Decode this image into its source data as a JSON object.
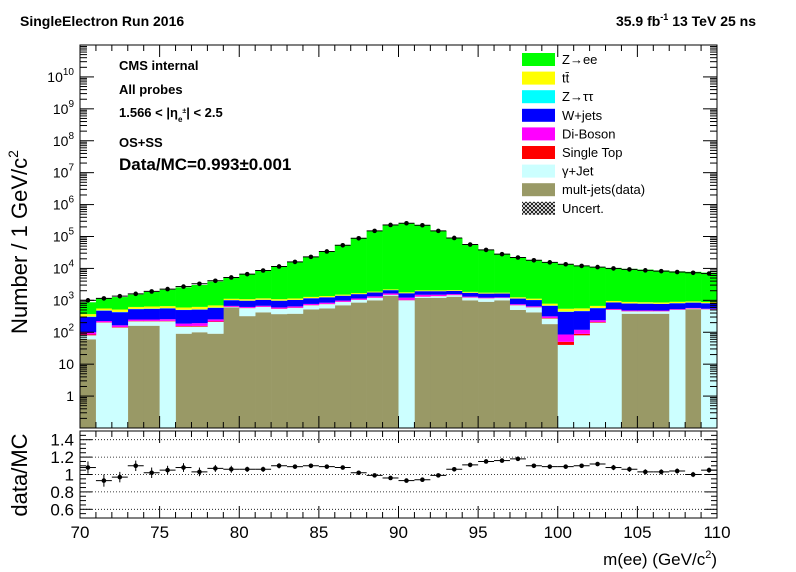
{
  "header": {
    "left": "SingleElectron Run 2016",
    "right_lumi": "35.9 fb",
    "right_lumi_sup": "-1",
    "right_rest": " 13 TeV 25 ns"
  },
  "annotations": {
    "cms": "CMS internal",
    "probes": "All probes",
    "eta_left": "1.566 < |η",
    "eta_sub": "e",
    "eta_sup": "±",
    "eta_right": "| < 2.5",
    "charge": "OS+SS",
    "ratio": "Data/MC=0.993±0.001"
  },
  "legend": [
    {
      "label": "Z→ee",
      "color": "#00ff00",
      "hatch": false
    },
    {
      "label": "tt̄",
      "color": "#ffff00",
      "hatch": false
    },
    {
      "label": "Z→ττ",
      "color": "#00ffff",
      "hatch": false
    },
    {
      "label": "W+jets",
      "color": "#0000ff",
      "hatch": false
    },
    {
      "label": "Di-Boson",
      "color": "#ff00ff",
      "hatch": false
    },
    {
      "label": "Single Top",
      "color": "#ff0000",
      "hatch": false
    },
    {
      "label": "γ+Jet",
      "color": "#ccffff",
      "hatch": false
    },
    {
      "label": "mult-jets(data)",
      "color": "#999966",
      "hatch": false
    },
    {
      "label": "Uncert.",
      "color": "#000000",
      "hatch": true
    }
  ],
  "chart_data": [
    {
      "type": "bar",
      "panel": "main",
      "stacked": true,
      "log_y": true,
      "ylabel": "Number / 1 GeV/c",
      "ylabel_sup": "2",
      "xlim": [
        70,
        110
      ],
      "ylim": [
        0.1,
        100000000000
      ],
      "y_ticks": [
        {
          "v": 1,
          "label": "1",
          "sup": ""
        },
        {
          "v": 10,
          "label": "10",
          "sup": ""
        },
        {
          "v": 100,
          "label": "10",
          "sup": "2"
        },
        {
          "v": 1000,
          "label": "10",
          "sup": "3"
        },
        {
          "v": 10000,
          "label": "10",
          "sup": "4"
        },
        {
          "v": 100000,
          "label": "10",
          "sup": "5"
        },
        {
          "v": 1000000,
          "label": "10",
          "sup": "6"
        },
        {
          "v": 10000000,
          "label": "10",
          "sup": "7"
        },
        {
          "v": 100000000,
          "label": "10",
          "sup": "8"
        },
        {
          "v": 1000000000,
          "label": "10",
          "sup": "9"
        },
        {
          "v": 10000000000,
          "label": "10",
          "sup": "10"
        }
      ],
      "x": [
        70.5,
        71.5,
        72.5,
        73.5,
        74.5,
        75.5,
        76.5,
        77.5,
        78.5,
        79.5,
        80.5,
        81.5,
        82.5,
        83.5,
        84.5,
        85.5,
        86.5,
        87.5,
        88.5,
        89.5,
        90.5,
        91.5,
        92.5,
        93.5,
        94.5,
        95.5,
        96.5,
        97.5,
        98.5,
        99.5,
        100.5,
        101.5,
        102.5,
        103.5,
        104.5,
        105.5,
        106.5,
        107.5,
        108.5,
        109.5
      ],
      "data": [
        1000,
        1150,
        1350,
        1600,
        1900,
        2250,
        2700,
        3300,
        4100,
        5200,
        6600,
        8600,
        11500,
        16000,
        23000,
        34000,
        53000,
        88000,
        150000,
        230000,
        260000,
        225000,
        150000,
        90000,
        56000,
        38000,
        28000,
        22000,
        18000,
        15500,
        13500,
        12000,
        11000,
        10000,
        9300,
        8700,
        8200,
        7700,
        7300,
        6900
      ],
      "series": [
        {
          "name": "mult-jets(data)",
          "color": "#999966",
          "values": [
            60,
            0.1,
            0.1,
            160,
            160,
            0.1,
            90,
            100,
            90,
            600,
            320,
            420,
            370,
            380,
            520,
            560,
            700,
            850,
            1000,
            1400,
            0.1,
            1200,
            1200,
            1300,
            1000,
            900,
            1000,
            500,
            420,
            180,
            0.1,
            0.1,
            0.1,
            0.1,
            380,
            380,
            380,
            0.1,
            530,
            0.1
          ]
        },
        {
          "name": "γ+Jet",
          "color": "#ccffff",
          "values": [
            20,
            200,
            140,
            60,
            60,
            220,
            60,
            50,
            120,
            20,
            250,
            200,
            170,
            200,
            180,
            200,
            190,
            180,
            200,
            80,
            1000,
            100,
            150,
            150,
            220,
            250,
            180,
            200,
            180,
            90,
            40,
            80,
            200,
            500,
            70,
            70,
            70,
            500,
            20,
            520
          ]
        },
        {
          "name": "Single Top",
          "color": "#ff0000",
          "values": [
            5,
            5,
            5,
            6,
            6,
            7,
            7,
            8,
            8,
            9,
            10,
            10,
            10,
            11,
            11,
            12,
            12,
            13,
            13,
            14,
            14,
            14,
            13,
            13,
            12,
            12,
            11,
            11,
            10,
            10,
            10,
            9,
            9,
            8,
            8,
            8,
            7,
            7,
            7,
            6
          ]
        },
        {
          "name": "Di-Boson",
          "color": "#ff00ff",
          "values": [
            15,
            20,
            20,
            25,
            25,
            30,
            30,
            35,
            35,
            40,
            40,
            45,
            50,
            55,
            60,
            70,
            80,
            100,
            120,
            150,
            200,
            180,
            140,
            100,
            80,
            60,
            50,
            45,
            40,
            35,
            35,
            30,
            30,
            28,
            25,
            25,
            22,
            22,
            20,
            20
          ]
        },
        {
          "name": "W+jets",
          "color": "#0000ff",
          "values": [
            200,
            250,
            260,
            280,
            290,
            300,
            310,
            320,
            330,
            340,
            350,
            360,
            370,
            380,
            390,
            400,
            410,
            420,
            430,
            440,
            450,
            440,
            430,
            420,
            410,
            400,
            390,
            380,
            370,
            360,
            350,
            340,
            330,
            320,
            310,
            300,
            290,
            280,
            270,
            260
          ]
        },
        {
          "name": "Z→ττ",
          "color": "#00ffff",
          "values": [
            10,
            10,
            10,
            10,
            10,
            10,
            10,
            10,
            10,
            10,
            10,
            10,
            10,
            10,
            10,
            10,
            10,
            10,
            10,
            10,
            10,
            10,
            10,
            10,
            10,
            10,
            10,
            10,
            10,
            10,
            10,
            10,
            10,
            10,
            10,
            10,
            10,
            10,
            10,
            10
          ]
        },
        {
          "name": "tt̄",
          "color": "#ffff00",
          "values": [
            60,
            70,
            80,
            80,
            90,
            90,
            90,
            100,
            100,
            100,
            110,
            110,
            110,
            110,
            110,
            110,
            110,
            110,
            110,
            110,
            110,
            110,
            110,
            110,
            110,
            110,
            100,
            100,
            100,
            100,
            100,
            90,
            90,
            90,
            90,
            80,
            80,
            80,
            70,
            70
          ]
        },
        {
          "name": "Z→ee",
          "color": "#00ff00",
          "values": [
            500,
            600,
            750,
            900,
            1200,
            1500,
            1950,
            2400,
            3200,
            4000,
            5500,
            7500,
            10500,
            15000,
            21500,
            32000,
            51000,
            86000,
            147000,
            227000,
            258000,
            222000,
            147000,
            87000,
            53000,
            36500,
            27000,
            21000,
            17000,
            14800,
            13000,
            11500,
            10300,
            9400,
            8800,
            8300,
            7800,
            7200,
            6900,
            6500
          ]
        }
      ]
    },
    {
      "type": "scatter",
      "panel": "ratio",
      "ylabel": "data/MC",
      "xlabel": "m(ee) (GeV/c",
      "xlabel_sup": "2",
      "xlabel_tail": ")",
      "xlim": [
        70,
        110
      ],
      "ylim": [
        0.5,
        1.5
      ],
      "x_ticks": [
        70,
        75,
        80,
        85,
        90,
        95,
        100,
        105,
        110
      ],
      "y_ticks": [
        0.6,
        0.8,
        1,
        1.2,
        1.4
      ],
      "y_tick_labels": [
        "0.6",
        "0.8",
        "1",
        "1.2",
        "1.4"
      ],
      "x": [
        70.5,
        71.5,
        72.5,
        73.5,
        74.5,
        75.5,
        76.5,
        77.5,
        78.5,
        79.5,
        80.5,
        81.5,
        82.5,
        83.5,
        84.5,
        85.5,
        86.5,
        87.5,
        88.5,
        89.5,
        90.5,
        91.5,
        92.5,
        93.5,
        94.5,
        95.5,
        96.5,
        97.5,
        98.5,
        99.5,
        100.5,
        101.5,
        102.5,
        103.5,
        104.5,
        105.5,
        106.5,
        107.5,
        108.5,
        109.5
      ],
      "y": [
        1.08,
        0.93,
        0.97,
        1.1,
        1.02,
        1.05,
        1.08,
        1.03,
        1.07,
        1.06,
        1.06,
        1.06,
        1.1,
        1.09,
        1.1,
        1.09,
        1.08,
        1.02,
        0.99,
        0.96,
        0.93,
        0.94,
        0.99,
        1.06,
        1.11,
        1.15,
        1.16,
        1.18,
        1.1,
        1.09,
        1.09,
        1.1,
        1.12,
        1.08,
        1.06,
        1.03,
        1.03,
        1.04,
        1.0,
        1.05
      ],
      "yerr": [
        0.07,
        0.07,
        0.06,
        0.06,
        0.06,
        0.05,
        0.05,
        0.05,
        0.04,
        0.04,
        0.03,
        0.03,
        0.03,
        0.02,
        0.02,
        0.02,
        0.02,
        0.01,
        0.01,
        0.01,
        0.01,
        0.01,
        0.01,
        0.01,
        0.02,
        0.02,
        0.02,
        0.02,
        0.02,
        0.02,
        0.02,
        0.02,
        0.02,
        0.03,
        0.03,
        0.03,
        0.03,
        0.03,
        0.03,
        0.03
      ],
      "gridlines": [
        0.6,
        0.8,
        1.0,
        1.2,
        1.4
      ]
    }
  ]
}
